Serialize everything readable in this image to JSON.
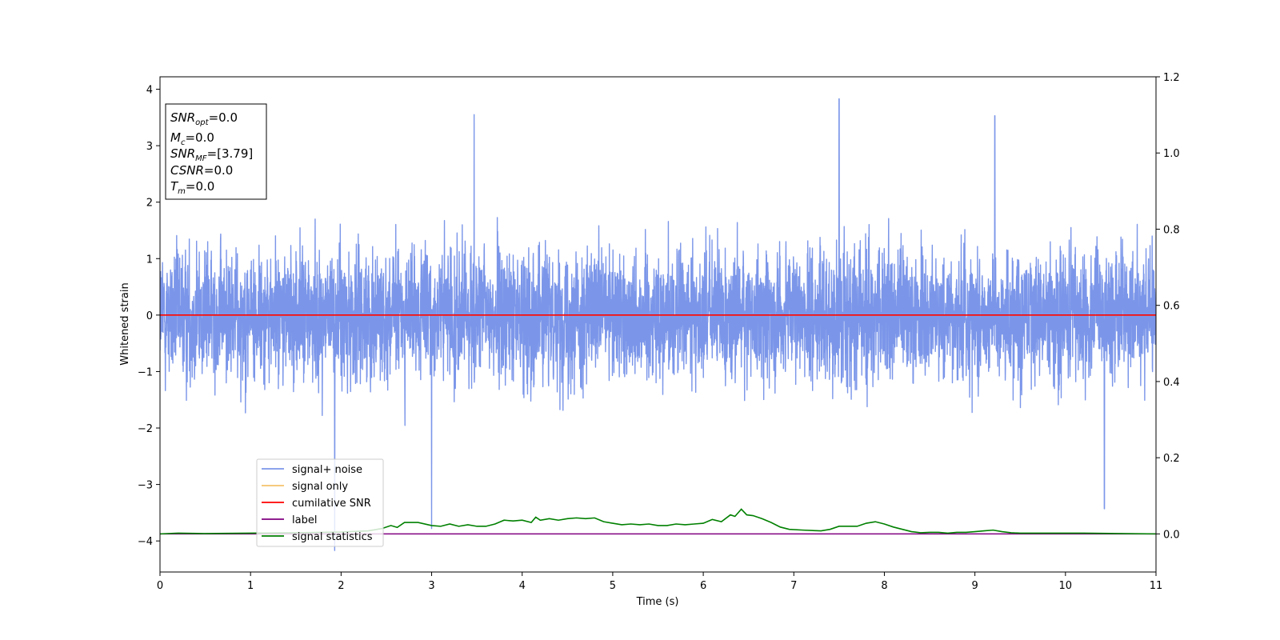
{
  "chart_data": {
    "type": "line",
    "title": "",
    "xlabel": "Time (s)",
    "ylabel": "Whitened strain",
    "y2label": "",
    "xlim": [
      0,
      11
    ],
    "ylim": [
      -4.55,
      4.22
    ],
    "y2lim": [
      -0.1,
      1.2
    ],
    "xticks": [
      0,
      1,
      2,
      3,
      4,
      5,
      6,
      7,
      8,
      9,
      10,
      11
    ],
    "yticks": [
      -4,
      -3,
      -2,
      -1,
      0,
      1,
      2,
      3,
      4
    ],
    "y2ticks": [
      0.0,
      0.2,
      0.4,
      0.6,
      0.8,
      1.0,
      1.2
    ],
    "xtick_labels": [
      "0",
      "1",
      "2",
      "3",
      "4",
      "5",
      "6",
      "7",
      "8",
      "9",
      "10",
      "11"
    ],
    "ytick_labels": [
      "−4",
      "−3",
      "−2",
      "−1",
      "0",
      "1",
      "2",
      "3",
      "4"
    ],
    "y2tick_labels": [
      "0.0",
      "0.2",
      "0.4",
      "0.6",
      "0.8",
      "1.0",
      "1.2"
    ],
    "grid": false,
    "legend": {
      "placement": "lower-left"
    },
    "annotation": {
      "lines": [
        {
          "main": "SNR",
          "sub": "opt",
          "rest": "=0.0"
        },
        {
          "main": "M",
          "sub": "c",
          "rest": "=0.0"
        },
        {
          "main": "SNR",
          "sub": "MF",
          "rest": "=[3.79]"
        },
        {
          "main": "CSNR",
          "sub": "",
          "rest": "=0.0"
        },
        {
          "main": "T",
          "sub": "m",
          "rest": "=0.0"
        }
      ]
    },
    "series": [
      {
        "name": "signal+ noise",
        "axis": "left",
        "color": "#7b96e9",
        "kind": "noise",
        "x_range": [
          0,
          11
        ],
        "y_range": [
          -4.17,
          3.83
        ],
        "notable_peaks": [
          {
            "x": 7.5,
            "y": 3.83
          },
          {
            "x": 3.47,
            "y": 3.55
          },
          {
            "x": 9.22,
            "y": 3.53
          },
          {
            "x": 1.93,
            "y": -4.17
          },
          {
            "x": 3.0,
            "y": -3.78
          },
          {
            "x": 10.43,
            "y": -3.43
          }
        ]
      },
      {
        "name": "signal only",
        "axis": "left",
        "color": "#f5c26b",
        "x": [
          0,
          11
        ],
        "y": [
          0,
          0
        ]
      },
      {
        "name": "cumilative SNR",
        "axis": "left",
        "color": "#ff0000",
        "x": [
          0,
          11
        ],
        "y": [
          0,
          0
        ]
      },
      {
        "name": "label",
        "axis": "right",
        "color": "#800080",
        "x": [
          0,
          11
        ],
        "y": [
          0.0,
          0.0
        ]
      },
      {
        "name": "signal statistics",
        "axis": "right",
        "color": "#008000",
        "x": [
          0,
          0.2,
          0.5,
          1.0,
          1.5,
          2.0,
          2.3,
          2.45,
          2.55,
          2.62,
          2.7,
          2.85,
          3.0,
          3.1,
          3.2,
          3.3,
          3.4,
          3.5,
          3.6,
          3.7,
          3.8,
          3.9,
          4.0,
          4.1,
          4.15,
          4.2,
          4.3,
          4.4,
          4.5,
          4.6,
          4.7,
          4.8,
          4.9,
          5.0,
          5.1,
          5.2,
          5.3,
          5.4,
          5.5,
          5.6,
          5.7,
          5.8,
          5.9,
          6.0,
          6.1,
          6.2,
          6.3,
          6.35,
          6.42,
          6.48,
          6.55,
          6.65,
          6.75,
          6.85,
          6.95,
          7.1,
          7.3,
          7.4,
          7.5,
          7.6,
          7.7,
          7.8,
          7.9,
          8.0,
          8.1,
          8.2,
          8.3,
          8.4,
          8.5,
          8.6,
          8.7,
          8.8,
          8.9,
          9.0,
          9.1,
          9.2,
          9.3,
          9.4,
          9.5,
          9.7,
          9.9,
          10.2,
          10.6,
          11.0
        ],
        "y": [
          0.0,
          0.002,
          0.001,
          0.002,
          0.003,
          0.005,
          0.008,
          0.014,
          0.022,
          0.017,
          0.03,
          0.03,
          0.022,
          0.02,
          0.026,
          0.02,
          0.024,
          0.02,
          0.02,
          0.026,
          0.036,
          0.034,
          0.036,
          0.03,
          0.044,
          0.036,
          0.04,
          0.036,
          0.04,
          0.042,
          0.04,
          0.042,
          0.032,
          0.028,
          0.024,
          0.026,
          0.024,
          0.026,
          0.022,
          0.022,
          0.026,
          0.024,
          0.026,
          0.028,
          0.038,
          0.032,
          0.05,
          0.046,
          0.065,
          0.05,
          0.048,
          0.04,
          0.03,
          0.018,
          0.012,
          0.01,
          0.008,
          0.012,
          0.02,
          0.02,
          0.02,
          0.028,
          0.032,
          0.026,
          0.018,
          0.012,
          0.006,
          0.003,
          0.004,
          0.004,
          0.002,
          0.004,
          0.004,
          0.006,
          0.008,
          0.01,
          0.006,
          0.003,
          0.002,
          0.002,
          0.002,
          0.002,
          0.001,
          0.0
        ]
      }
    ]
  }
}
